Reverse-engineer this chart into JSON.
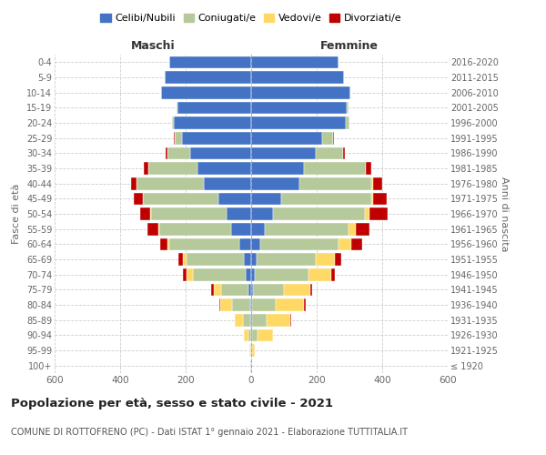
{
  "age_groups": [
    "100+",
    "95-99",
    "90-94",
    "85-89",
    "80-84",
    "75-79",
    "70-74",
    "65-69",
    "60-64",
    "55-59",
    "50-54",
    "45-49",
    "40-44",
    "35-39",
    "30-34",
    "25-29",
    "20-24",
    "15-19",
    "10-14",
    "5-9",
    "0-4"
  ],
  "birth_years": [
    "≤ 1920",
    "1921-1925",
    "1926-1930",
    "1931-1935",
    "1936-1940",
    "1941-1945",
    "1946-1950",
    "1951-1955",
    "1956-1960",
    "1961-1965",
    "1966-1970",
    "1971-1975",
    "1976-1980",
    "1981-1985",
    "1986-1990",
    "1991-1995",
    "1996-2000",
    "2001-2005",
    "2006-2010",
    "2011-2015",
    "2016-2020"
  ],
  "colors": {
    "celibi": "#4472C4",
    "coniugati": "#B5C99A",
    "vedovi": "#FFD966",
    "divorziati": "#C00000"
  },
  "maschi": {
    "celibi": [
      2,
      1,
      1,
      2,
      4,
      8,
      18,
      22,
      35,
      60,
      75,
      100,
      145,
      165,
      185,
      210,
      235,
      225,
      275,
      265,
      250
    ],
    "coniugati": [
      1,
      2,
      8,
      22,
      55,
      85,
      160,
      175,
      215,
      220,
      230,
      230,
      205,
      150,
      70,
      22,
      6,
      2,
      1,
      0,
      0
    ],
    "vedovi": [
      0,
      2,
      12,
      25,
      35,
      22,
      18,
      12,
      6,
      4,
      2,
      1,
      0,
      0,
      0,
      0,
      0,
      0,
      0,
      0,
      0
    ],
    "divorziati": [
      0,
      0,
      0,
      0,
      2,
      8,
      12,
      12,
      22,
      32,
      32,
      28,
      18,
      12,
      6,
      3,
      0,
      0,
      0,
      0,
      0
    ]
  },
  "femmine": {
    "nubili": [
      1,
      1,
      2,
      3,
      4,
      6,
      12,
      18,
      28,
      42,
      68,
      92,
      148,
      162,
      198,
      218,
      288,
      292,
      302,
      282,
      268
    ],
    "coniugate": [
      0,
      2,
      18,
      45,
      70,
      95,
      162,
      180,
      240,
      255,
      280,
      275,
      220,
      188,
      82,
      32,
      12,
      5,
      2,
      0,
      0
    ],
    "vedove": [
      2,
      8,
      48,
      72,
      88,
      80,
      70,
      58,
      38,
      22,
      12,
      6,
      3,
      1,
      0,
      0,
      0,
      0,
      0,
      0,
      0
    ],
    "divorziate": [
      0,
      0,
      0,
      2,
      6,
      6,
      12,
      18,
      32,
      42,
      58,
      42,
      28,
      16,
      6,
      2,
      0,
      0,
      0,
      0,
      0
    ]
  },
  "xlim": 600,
  "title": "Popolazione per età, sesso e stato civile - 2021",
  "subtitle": "COMUNE DI ROTTOFRENO (PC) - Dati ISTAT 1° gennaio 2021 - Elaborazione TUTTITALIA.IT",
  "ylabel_left": "Fasce di età",
  "ylabel_right": "Anni di nascita",
  "legend_labels": [
    "Celibi/Nubili",
    "Coniugati/e",
    "Vedovi/e",
    "Divorziati/e"
  ],
  "maschi_label": "Maschi",
  "femmine_label": "Femmine"
}
